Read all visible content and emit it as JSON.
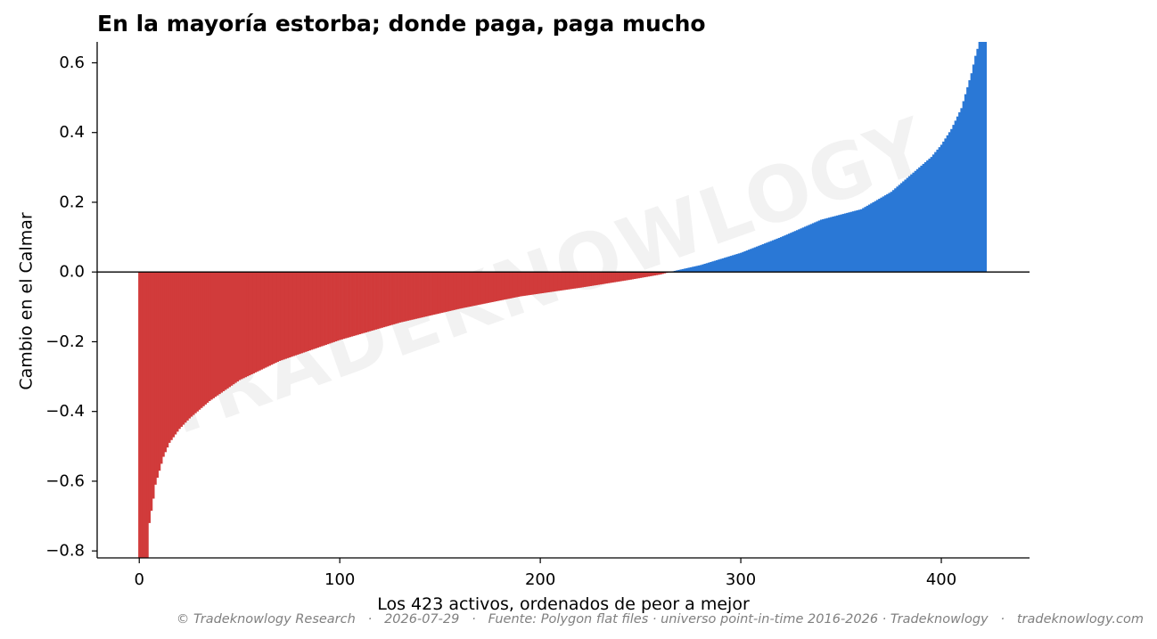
{
  "chart_data": {
    "type": "bar",
    "title": "En la mayoría estorba; donde paga, paga mucho",
    "xlabel": "Los 423 activos, ordenados de peor a mejor",
    "ylabel": "Cambio en el Calmar",
    "xlim": [
      -21,
      444
    ],
    "ylim": [
      -0.82,
      0.66
    ],
    "xticks": [
      0,
      100,
      200,
      300,
      400
    ],
    "yticks": [
      -0.8,
      -0.6,
      -0.4,
      -0.2,
      0.0,
      0.2,
      0.4,
      0.6
    ],
    "ytick_labels": [
      "−0.8",
      "−0.6",
      "−0.4",
      "−0.2",
      "0.0",
      "0.2",
      "0.4",
      "0.6"
    ],
    "n_bars": 423,
    "zero_crossing_index": 266,
    "colors": {
      "negative": "#d13b3b",
      "positive": "#2a78d6",
      "zero_line": "#000000"
    },
    "sorted_value_profile": [
      {
        "index": 0,
        "value": -0.82
      },
      {
        "index": 4,
        "value": -0.82
      },
      {
        "index": 5,
        "value": -0.72
      },
      {
        "index": 7,
        "value": -0.65
      },
      {
        "index": 8,
        "value": -0.61
      },
      {
        "index": 10,
        "value": -0.57
      },
      {
        "index": 12,
        "value": -0.53
      },
      {
        "index": 15,
        "value": -0.49
      },
      {
        "index": 20,
        "value": -0.45
      },
      {
        "index": 25,
        "value": -0.42
      },
      {
        "index": 35,
        "value": -0.37
      },
      {
        "index": 50,
        "value": -0.31
      },
      {
        "index": 70,
        "value": -0.255
      },
      {
        "index": 100,
        "value": -0.195
      },
      {
        "index": 130,
        "value": -0.145
      },
      {
        "index": 160,
        "value": -0.105
      },
      {
        "index": 190,
        "value": -0.07
      },
      {
        "index": 220,
        "value": -0.045
      },
      {
        "index": 245,
        "value": -0.022
      },
      {
        "index": 260,
        "value": -0.007
      },
      {
        "index": 266,
        "value": 0.002
      },
      {
        "index": 280,
        "value": 0.02
      },
      {
        "index": 300,
        "value": 0.055
      },
      {
        "index": 320,
        "value": 0.1
      },
      {
        "index": 340,
        "value": 0.15
      },
      {
        "index": 360,
        "value": 0.18
      },
      {
        "index": 375,
        "value": 0.23
      },
      {
        "index": 385,
        "value": 0.28
      },
      {
        "index": 395,
        "value": 0.33
      },
      {
        "index": 400,
        "value": 0.365
      },
      {
        "index": 405,
        "value": 0.41
      },
      {
        "index": 410,
        "value": 0.47
      },
      {
        "index": 413,
        "value": 0.53
      },
      {
        "index": 415,
        "value": 0.57
      },
      {
        "index": 417,
        "value": 0.62
      },
      {
        "index": 419,
        "value": 0.66
      },
      {
        "index": 422,
        "value": 0.66
      }
    ]
  },
  "watermark": "TRADEKNOWLOGY",
  "footer": "© Tradeknowlogy Research   ·   2026-07-29   ·   Fuente: Polygon flat files · universo point-in-time 2016-2026 · Tradeknowlogy   ·   tradeknowlogy.com"
}
